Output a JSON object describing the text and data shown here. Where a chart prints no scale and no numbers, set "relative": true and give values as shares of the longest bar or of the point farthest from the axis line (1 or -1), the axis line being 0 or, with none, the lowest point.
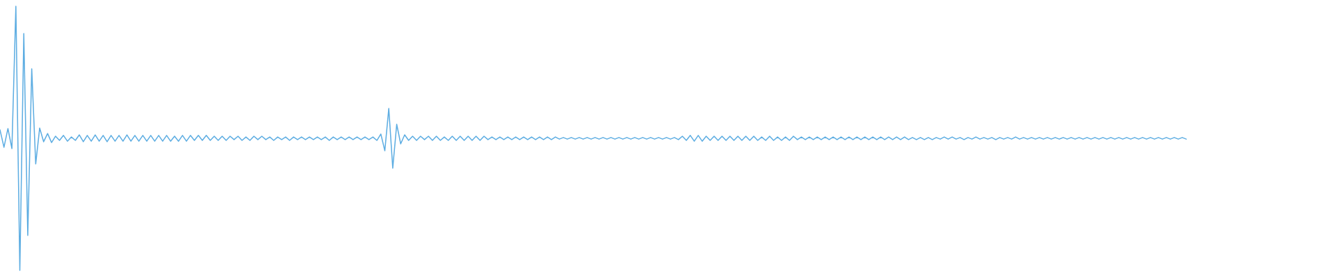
{
  "chart_data": {
    "type": "line",
    "relative": true,
    "tick_labels": false,
    "categories": [
      null,
      null,
      null,
      null,
      null,
      null,
      null,
      null,
      null,
      null,
      null,
      null,
      null,
      null,
      null,
      null,
      null,
      null,
      null,
      null,
      null,
      null,
      null,
      null,
      null,
      null,
      null,
      null,
      null,
      null,
      null,
      null,
      null,
      null,
      null,
      null,
      null,
      null,
      null,
      null,
      null,
      null,
      null,
      null,
      null,
      null,
      null,
      null,
      null,
      null,
      null,
      null,
      null,
      null,
      null,
      null,
      null,
      null,
      null,
      null,
      null,
      null,
      null,
      null,
      null,
      null,
      null,
      null,
      null,
      null,
      null,
      null,
      null,
      null,
      null,
      null,
      null,
      null,
      null,
      null,
      null,
      null,
      null,
      null,
      null,
      null,
      null,
      null,
      null,
      null,
      null,
      null,
      null,
      null,
      null,
      null,
      null,
      null,
      null,
      null,
      null,
      null,
      null,
      null,
      null,
      null,
      null,
      null,
      null,
      null,
      null,
      null,
      null,
      null,
      null,
      null,
      null,
      null,
      null,
      null,
      null,
      null,
      null,
      null,
      null,
      null,
      null,
      null,
      null,
      null,
      null,
      null,
      null,
      null,
      null,
      null,
      null,
      null,
      null,
      null,
      null,
      null,
      null,
      null,
      null,
      null,
      null,
      null,
      null,
      null,
      null,
      null,
      null,
      null,
      null,
      null,
      null,
      null,
      null,
      null,
      null,
      null,
      null,
      null,
      null,
      null,
      null,
      null,
      null,
      null,
      null,
      null,
      null,
      null,
      null,
      null,
      null,
      null,
      null,
      null,
      null,
      null,
      null,
      null,
      null,
      null,
      null,
      null,
      null,
      null,
      null,
      null,
      null,
      null,
      null,
      null,
      null,
      null,
      null,
      null,
      null,
      null,
      null,
      null,
      null,
      null,
      null,
      null,
      null,
      null,
      null,
      null,
      null,
      null,
      null,
      null,
      null,
      null,
      null,
      null,
      null,
      null,
      null,
      null,
      null,
      null,
      null,
      null,
      null,
      null,
      null,
      null,
      null,
      null,
      null,
      null,
      null,
      null,
      null,
      null,
      null,
      null,
      null,
      null,
      null,
      null,
      null,
      null,
      null,
      null,
      null,
      null,
      null,
      null,
      null,
      null,
      null,
      null,
      null,
      null,
      null,
      null,
      null,
      null,
      null,
      null,
      null,
      null,
      null,
      null,
      null,
      null,
      null,
      null,
      null,
      null,
      null,
      null,
      null,
      null,
      null,
      null,
      null,
      null,
      null,
      null,
      null,
      null,
      null,
      null,
      null,
      null,
      null,
      null,
      null,
      null,
      null,
      null,
      null,
      null
    ],
    "series": [
      {
        "color": "#5dade2",
        "values": [
          0.532,
          0.466,
          0.537,
          0.461,
          1,
          0,
          0.897,
          0.132,
          0.763,
          0.403,
          0.539,
          0.487,
          0.518,
          0.484,
          0.508,
          0.492,
          0.511,
          0.489,
          0.505,
          0.492,
          0.513,
          0.487,
          0.511,
          0.489,
          0.513,
          0.489,
          0.511,
          0.487,
          0.511,
          0.489,
          0.511,
          0.489,
          0.513,
          0.489,
          0.511,
          0.489,
          0.511,
          0.489,
          0.511,
          0.489,
          0.511,
          0.489,
          0.511,
          0.489,
          0.508,
          0.489,
          0.511,
          0.489,
          0.511,
          0.492,
          0.511,
          0.492,
          0.511,
          0.492,
          0.508,
          0.492,
          0.508,
          0.492,
          0.508,
          0.495,
          0.508,
          0.492,
          0.505,
          0.492,
          0.508,
          0.495,
          0.508,
          0.495,
          0.505,
          0.492,
          0.505,
          0.495,
          0.505,
          0.492,
          0.505,
          0.495,
          0.505,
          0.495,
          0.505,
          0.495,
          0.505,
          0.495,
          0.505,
          0.492,
          0.505,
          0.495,
          0.505,
          0.495,
          0.505,
          0.495,
          0.505,
          0.495,
          0.505,
          0.495,
          0.505,
          0.492,
          0.516,
          0.453,
          0.613,
          0.387,
          0.553,
          0.479,
          0.513,
          0.492,
          0.508,
          0.492,
          0.508,
          0.495,
          0.508,
          0.492,
          0.508,
          0.492,
          0.505,
          0.492,
          0.508,
          0.492,
          0.508,
          0.492,
          0.508,
          0.492,
          0.508,
          0.492,
          0.508,
          0.495,
          0.505,
          0.495,
          0.505,
          0.495,
          0.505,
          0.495,
          0.505,
          0.495,
          0.505,
          0.495,
          0.505,
          0.495,
          0.505,
          0.495,
          0.505,
          0.495,
          0.505,
          0.497,
          0.503,
          0.497,
          0.503,
          0.497,
          0.503,
          0.497,
          0.503,
          0.497,
          0.503,
          0.497,
          0.503,
          0.497,
          0.503,
          0.497,
          0.503,
          0.497,
          0.503,
          0.497,
          0.503,
          0.497,
          0.503,
          0.497,
          0.503,
          0.497,
          0.503,
          0.497,
          0.503,
          0.497,
          0.503,
          0.495,
          0.508,
          0.492,
          0.511,
          0.489,
          0.511,
          0.489,
          0.508,
          0.492,
          0.508,
          0.492,
          0.508,
          0.492,
          0.508,
          0.492,
          0.508,
          0.492,
          0.508,
          0.492,
          0.508,
          0.492,
          0.505,
          0.492,
          0.508,
          0.492,
          0.505,
          0.492,
          0.505,
          0.492,
          0.508,
          0.495,
          0.505,
          0.495,
          0.505,
          0.495,
          0.505,
          0.495,
          0.505,
          0.495,
          0.505,
          0.495,
          0.505,
          0.495,
          0.505,
          0.495,
          0.505,
          0.495,
          0.505,
          0.495,
          0.505,
          0.495,
          0.505,
          0.495,
          0.505,
          0.495,
          0.505,
          0.495,
          0.505,
          0.495,
          0.503,
          0.495,
          0.503,
          0.495,
          0.503,
          0.495,
          0.503,
          0.497,
          0.505,
          0.497,
          0.505,
          0.497,
          0.503,
          0.495,
          0.503,
          0.497,
          0.505,
          0.497,
          0.503,
          0.497,
          0.503,
          0.495,
          0.503,
          0.497,
          0.503,
          0.497,
          0.505,
          0.497,
          0.503,
          0.497,
          0.503,
          0.497,
          0.503,
          0.497,
          0.503,
          0.497,
          0.503,
          0.497,
          0.503,
          0.497,
          0.503,
          0.497,
          0.503,
          0.497,
          0.503,
          0.497,
          0.503,
          0.497,
          0.503,
          0.497,
          0.503,
          0.497,
          0.503,
          0.497,
          0.503,
          0.497,
          0.503,
          0.497,
          0.503,
          0.497,
          0.503,
          0.497,
          0.503,
          0.497,
          0.503,
          0.497,
          0.503,
          0.497,
          0.503,
          0.497
        ]
      }
    ]
  }
}
